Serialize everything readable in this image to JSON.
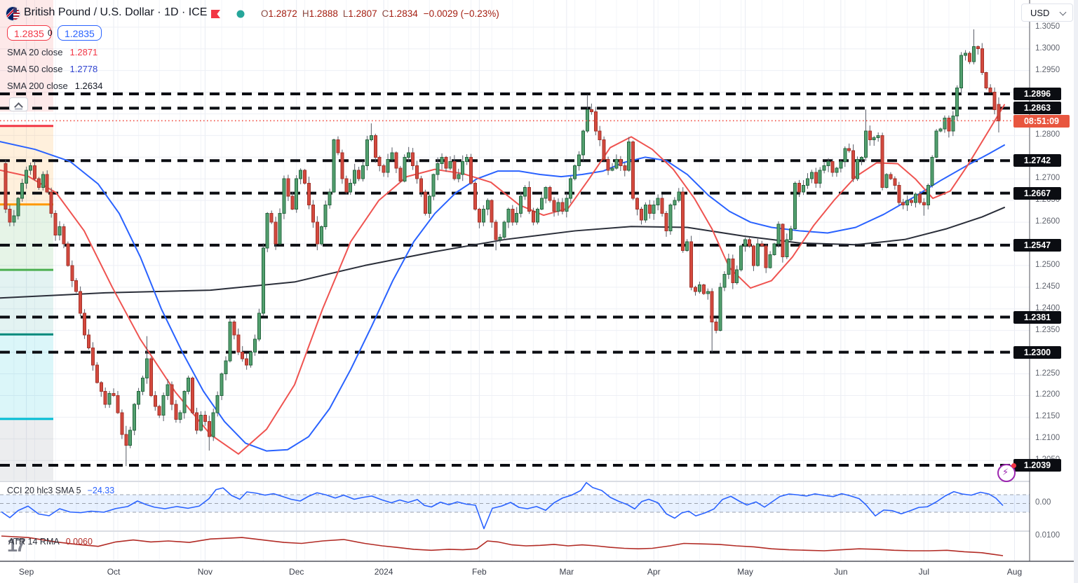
{
  "header": {
    "title": "British Pound / U.S. Dollar · 1D · ICE",
    "ohlc": {
      "o_label": "O",
      "o": "1.2872",
      "h_label": "H",
      "h": "1.2888",
      "l_label": "L",
      "l": "1.2807",
      "c_label": "C",
      "c": "1.2834",
      "change": "−0.0029 (−0.23%)"
    },
    "flag_icon": "gbp-usd-flag",
    "bookmark_color": "#f23645",
    "status_dot_color": "#26a69a"
  },
  "quote": {
    "sell": "1.2835",
    "spread": "0",
    "buy": "1.2835"
  },
  "legend": [
    {
      "name": "SMA 20 close",
      "value": "1.2871",
      "color": "#f23645"
    },
    {
      "name": "SMA 50 close",
      "value": "1.2778",
      "color": "#2f43d0"
    },
    {
      "name": "SMA 200 close",
      "value": "1.2634",
      "color": "#131722"
    }
  ],
  "price_axis": {
    "currency": "USD",
    "ticks": [
      13050,
      13000,
      12950,
      12800,
      12700,
      12650,
      12600,
      12500,
      12450,
      12400,
      12350,
      12250,
      12200,
      12150,
      12100,
      12050
    ],
    "sr_labels": [
      12896,
      12863,
      12742,
      12667,
      12547,
      12381,
      12300,
      12039
    ],
    "countdown": {
      "text": "08:51:09",
      "price": 12834
    }
  },
  "time_axis": [
    {
      "label": "Sep",
      "day": 5
    },
    {
      "label": "Oct",
      "day": 26
    },
    {
      "label": "Nov",
      "day": 48
    },
    {
      "label": "Dec",
      "day": 70
    },
    {
      "label": "2024",
      "day": 91
    },
    {
      "label": "Feb",
      "day": 114
    },
    {
      "label": "Mar",
      "day": 135
    },
    {
      "label": "Apr",
      "day": 156
    },
    {
      "label": "May",
      "day": 178
    },
    {
      "label": "Jun",
      "day": 201
    },
    {
      "label": "Jul",
      "day": 221
    },
    {
      "label": "Aug",
      "day": 242.8
    }
  ],
  "indicators": {
    "cci": {
      "label": "CCI 20 hlc3 SMA 5",
      "value": "−24.33",
      "axis_zero": "0.00",
      "line_color": "#2962ff",
      "band_bounds": [
        100,
        0,
        -100
      ]
    },
    "atr": {
      "label": "ATR 14 RMA",
      "value": "0.0060",
      "axis_tick": "0.0100",
      "line_color": "#b22b25"
    }
  },
  "misc": {
    "watermark": "17"
  },
  "chart_data": {
    "type": "candlestick",
    "title": "British Pound / U.S. Dollar, 1D, ICE",
    "ylabel": "USD",
    "ylim": [
      1.199,
      1.3113
    ],
    "current_price": 12834,
    "up_color": "#53a06f",
    "up_border": "#25663f",
    "down_color": "#d4493e",
    "down_border": "#a33229",
    "wick_color": "#565b66",
    "first_open_e4": 12735,
    "closes_e4": [
      12630,
      12600,
      12615,
      12655,
      12690,
      12720,
      12730,
      12700,
      12680,
      12710,
      12670,
      12620,
      12570,
      12590,
      12550,
      12500,
      12465,
      12440,
      12390,
      12340,
      12310,
      12270,
      12230,
      12210,
      12180,
      12205,
      12200,
      12160,
      12110,
      12085,
      12120,
      12180,
      12210,
      12240,
      12285,
      12200,
      12175,
      12155,
      12200,
      12225,
      12180,
      12145,
      12160,
      12210,
      12240,
      12160,
      12120,
      12155,
      12140,
      12105,
      12160,
      12200,
      12250,
      12280,
      12370,
      12340,
      12300,
      12285,
      12270,
      12300,
      12330,
      12390,
      12540,
      12620,
      12600,
      12550,
      12620,
      12700,
      12660,
      12630,
      12700,
      12720,
      12690,
      12640,
      12600,
      12550,
      12590,
      12640,
      12670,
      12790,
      12760,
      12700,
      12670,
      12690,
      12720,
      12700,
      12730,
      12790,
      12800,
      12750,
      12730,
      12715,
      12745,
      12760,
      12725,
      12695,
      12750,
      12760,
      12730,
      12700,
      12670,
      12620,
      12660,
      12710,
      12735,
      12750,
      12725,
      12740,
      12700,
      12710,
      12740,
      12750,
      12690,
      12630,
      12600,
      12630,
      12650,
      12600,
      12560,
      12565,
      12600,
      12630,
      12600,
      12620,
      12660,
      12680,
      12625,
      12600,
      12630,
      12655,
      12680,
      12650,
      12625,
      12645,
      12625,
      12655,
      12700,
      12730,
      12755,
      12810,
      12860,
      12855,
      12810,
      12790,
      12745,
      12720,
      12725,
      12745,
      12730,
      12720,
      12785,
      12655,
      12630,
      12605,
      12640,
      12620,
      12640,
      12655,
      12620,
      12580,
      12640,
      12650,
      12670,
      12535,
      12555,
      12450,
      12440,
      12455,
      12435,
      12440,
      12370,
      12350,
      12450,
      12480,
      12515,
      12460,
      12490,
      12545,
      12560,
      12545,
      12500,
      12550,
      12545,
      12495,
      12525,
      12550,
      12595,
      12520,
      12560,
      12585,
      12690,
      12670,
      12685,
      12700,
      12715,
      12690,
      12720,
      12730,
      12740,
      12715,
      12725,
      12740,
      12770,
      12765,
      12700,
      12745,
      12750,
      12810,
      12790,
      12795,
      12800,
      12680,
      12710,
      12700,
      12685,
      12645,
      12640,
      12650,
      12645,
      12665,
      12645,
      12640,
      12685,
      12750,
      12810,
      12815,
      12840,
      12810,
      12845,
      12910,
      12985,
      12990,
      12970,
      13005,
      13000,
      12945,
      12910,
      12900,
      12860,
      12834
    ],
    "wick_overrides": {
      "29": [
        12130,
        12037
      ],
      "34": [
        12337,
        null
      ],
      "49": [
        null,
        12073
      ],
      "88": [
        12828,
        null
      ],
      "118": [
        null,
        12535
      ],
      "140": [
        12894,
        null
      ],
      "170": [
        null,
        12300
      ],
      "207": [
        12860,
        null
      ],
      "221": [
        null,
        12615
      ],
      "233": [
        13045,
        null
      ],
      "239": [
        12888,
        12807
      ]
    },
    "open_overrides": {
      "239": 12872
    },
    "sr_levels_e4": [
      12896,
      12863,
      12742,
      12667,
      12547,
      12381,
      12300,
      12039
    ],
    "sma20": [
      [
        0,
        12720
      ],
      [
        40,
        12706
      ],
      [
        80,
        12668
      ],
      [
        120,
        12580
      ],
      [
        160,
        12450
      ],
      [
        200,
        12330
      ],
      [
        250,
        12208
      ],
      [
        300,
        12110
      ],
      [
        340,
        12065
      ],
      [
        380,
        12122
      ],
      [
        420,
        12225
      ],
      [
        460,
        12400
      ],
      [
        500,
        12555
      ],
      [
        540,
        12650
      ],
      [
        580,
        12705
      ],
      [
        620,
        12722
      ],
      [
        660,
        12712
      ],
      [
        700,
        12692
      ],
      [
        740,
        12640
      ],
      [
        775,
        12616
      ],
      [
        810,
        12632
      ],
      [
        840,
        12700
      ],
      [
        870,
        12772
      ],
      [
        900,
        12797
      ],
      [
        930,
        12768
      ],
      [
        960,
        12722
      ],
      [
        990,
        12655
      ],
      [
        1015,
        12585
      ],
      [
        1040,
        12495
      ],
      [
        1070,
        12448
      ],
      [
        1100,
        12465
      ],
      [
        1130,
        12520
      ],
      [
        1160,
        12592
      ],
      [
        1190,
        12652
      ],
      [
        1220,
        12705
      ],
      [
        1250,
        12737
      ],
      [
        1280,
        12735
      ],
      [
        1305,
        12700
      ],
      [
        1330,
        12655
      ],
      [
        1355,
        12672
      ],
      [
        1380,
        12732
      ],
      [
        1410,
        12812
      ],
      [
        1432,
        12871
      ]
    ],
    "sma50": [
      [
        0,
        12786
      ],
      [
        50,
        12768
      ],
      [
        100,
        12740
      ],
      [
        140,
        12688
      ],
      [
        170,
        12620
      ],
      [
        200,
        12520
      ],
      [
        230,
        12400
      ],
      [
        260,
        12300
      ],
      [
        290,
        12210
      ],
      [
        320,
        12140
      ],
      [
        350,
        12090
      ],
      [
        380,
        12072
      ],
      [
        410,
        12075
      ],
      [
        440,
        12105
      ],
      [
        470,
        12170
      ],
      [
        500,
        12260
      ],
      [
        530,
        12360
      ],
      [
        560,
        12465
      ],
      [
        590,
        12555
      ],
      [
        620,
        12620
      ],
      [
        650,
        12668
      ],
      [
        680,
        12700
      ],
      [
        710,
        12718
      ],
      [
        740,
        12718
      ],
      [
        770,
        12710
      ],
      [
        800,
        12705
      ],
      [
        830,
        12710
      ],
      [
        860,
        12718
      ],
      [
        890,
        12738
      ],
      [
        920,
        12750
      ],
      [
        950,
        12742
      ],
      [
        980,
        12710
      ],
      [
        1010,
        12662
      ],
      [
        1040,
        12625
      ],
      [
        1070,
        12600
      ],
      [
        1100,
        12588
      ],
      [
        1140,
        12580
      ],
      [
        1180,
        12575
      ],
      [
        1220,
        12588
      ],
      [
        1260,
        12618
      ],
      [
        1300,
        12655
      ],
      [
        1340,
        12695
      ],
      [
        1380,
        12732
      ],
      [
        1410,
        12758
      ],
      [
        1432,
        12778
      ]
    ],
    "sma200": [
      [
        0,
        12425
      ],
      [
        150,
        12437
      ],
      [
        300,
        12443
      ],
      [
        420,
        12462
      ],
      [
        520,
        12500
      ],
      [
        620,
        12532
      ],
      [
        720,
        12560
      ],
      [
        820,
        12580
      ],
      [
        900,
        12590
      ],
      [
        980,
        12588
      ],
      [
        1060,
        12568
      ],
      [
        1140,
        12552
      ],
      [
        1220,
        12548
      ],
      [
        1290,
        12560
      ],
      [
        1350,
        12585
      ],
      [
        1400,
        12612
      ],
      [
        1432,
        12634
      ]
    ],
    "pivot_zones": {
      "x_span": [
        0,
        76
      ],
      "bands": [
        {
          "top_e4": 13113,
          "bottom_e4": 12855,
          "color": "rgba(242,82,82,0.13)"
        },
        {
          "top_e4": 12820,
          "bottom_e4": 12641,
          "color": "rgba(255,160,40,0.16)"
        },
        {
          "top_e4": 12641,
          "bottom_e4": 12490,
          "color": "rgba(102,187,106,0.16)"
        },
        {
          "top_e4": 12490,
          "bottom_e4": 12341,
          "color": "rgba(38,166,154,0.13)"
        },
        {
          "top_e4": 12341,
          "bottom_e4": 12146,
          "color": "rgba(0,188,212,0.14)"
        },
        {
          "top_e4": 12146,
          "bottom_e4": 12004,
          "color": "rgba(130,134,148,0.15)"
        }
      ],
      "lines": [
        {
          "price_e4": 12822,
          "color": "#f23645"
        },
        {
          "price_e4": 12641,
          "color": "#ff9800"
        },
        {
          "price_e4": 12490,
          "color": "#4caf50"
        },
        {
          "price_e4": 12341,
          "color": "#00897b"
        },
        {
          "price_e4": 12146,
          "color": "#00bcd4"
        }
      ]
    },
    "cci_points": [
      [
        2,
        -95
      ],
      [
        14,
        -162
      ],
      [
        26,
        -80
      ],
      [
        40,
        -30
      ],
      [
        55,
        -120
      ],
      [
        70,
        -140
      ],
      [
        85,
        -60
      ],
      [
        100,
        -98
      ],
      [
        115,
        -105
      ],
      [
        130,
        -88
      ],
      [
        148,
        -100
      ],
      [
        165,
        -58
      ],
      [
        182,
        -35
      ],
      [
        196,
        28
      ],
      [
        208,
        -12
      ],
      [
        220,
        -42
      ],
      [
        235,
        -60
      ],
      [
        252,
        -35
      ],
      [
        268,
        -55
      ],
      [
        284,
        -30
      ],
      [
        298,
        55
      ],
      [
        308,
        158
      ],
      [
        318,
        178
      ],
      [
        330,
        92
      ],
      [
        342,
        48
      ],
      [
        352,
        132
      ],
      [
        365,
        118
      ],
      [
        378,
        95
      ],
      [
        390,
        112
      ],
      [
        402,
        82
      ],
      [
        415,
        48
      ],
      [
        428,
        28
      ],
      [
        440,
        82
      ],
      [
        452,
        122
      ],
      [
        465,
        98
      ],
      [
        478,
        62
      ],
      [
        490,
        95
      ],
      [
        505,
        48
      ],
      [
        518,
        70
      ],
      [
        530,
        85
      ],
      [
        545,
        40
      ],
      [
        558,
        8
      ],
      [
        570,
        40
      ],
      [
        582,
        12
      ],
      [
        595,
        45
      ],
      [
        605,
        -22
      ],
      [
        615,
        -40
      ],
      [
        628,
        15
      ],
      [
        640,
        -15
      ],
      [
        652,
        18
      ],
      [
        665,
        -8
      ],
      [
        678,
        -20
      ],
      [
        690,
        -288
      ],
      [
        702,
        -55
      ],
      [
        715,
        -30
      ],
      [
        728,
        12
      ],
      [
        740,
        -45
      ],
      [
        752,
        -60
      ],
      [
        765,
        -35
      ],
      [
        778,
        -78
      ],
      [
        790,
        8
      ],
      [
        802,
        62
      ],
      [
        815,
        95
      ],
      [
        828,
        148
      ],
      [
        836,
        238
      ],
      [
        845,
        182
      ],
      [
        858,
        148
      ],
      [
        870,
        70
      ],
      [
        882,
        25
      ],
      [
        895,
        -15
      ],
      [
        905,
        -62
      ],
      [
        915,
        22
      ],
      [
        925,
        48
      ],
      [
        938,
        8
      ],
      [
        950,
        -118
      ],
      [
        962,
        -168
      ],
      [
        972,
        -108
      ],
      [
        982,
        -88
      ],
      [
        992,
        -142
      ],
      [
        1005,
        -108
      ],
      [
        1018,
        -62
      ],
      [
        1030,
        45
      ],
      [
        1042,
        82
      ],
      [
        1055,
        22
      ],
      [
        1065,
        -18
      ],
      [
        1078,
        18
      ],
      [
        1090,
        -42
      ],
      [
        1102,
        25
      ],
      [
        1112,
        80
      ],
      [
        1125,
        108
      ],
      [
        1138,
        98
      ],
      [
        1150,
        85
      ],
      [
        1162,
        110
      ],
      [
        1175,
        92
      ],
      [
        1188,
        78
      ],
      [
        1200,
        112
      ],
      [
        1212,
        88
      ],
      [
        1225,
        55
      ],
      [
        1235,
        -18
      ],
      [
        1248,
        -142
      ],
      [
        1260,
        -75
      ],
      [
        1272,
        -82
      ],
      [
        1285,
        -118
      ],
      [
        1298,
        -82
      ],
      [
        1310,
        -45
      ],
      [
        1322,
        -38
      ],
      [
        1335,
        18
      ],
      [
        1348,
        88
      ],
      [
        1360,
        135
      ],
      [
        1372,
        108
      ],
      [
        1385,
        95
      ],
      [
        1398,
        128
      ],
      [
        1410,
        108
      ],
      [
        1420,
        60
      ],
      [
        1430,
        -24
      ]
    ],
    "atr_points": [
      [
        2,
        100
      ],
      [
        40,
        97
      ],
      [
        80,
        88
      ],
      [
        110,
        83
      ],
      [
        140,
        79
      ],
      [
        165,
        88
      ],
      [
        190,
        92
      ],
      [
        215,
        88
      ],
      [
        240,
        90
      ],
      [
        270,
        87
      ],
      [
        300,
        94
      ],
      [
        330,
        96
      ],
      [
        345,
        97
      ],
      [
        375,
        92
      ],
      [
        405,
        87
      ],
      [
        430,
        85
      ],
      [
        460,
        90
      ],
      [
        490,
        93
      ],
      [
        520,
        85
      ],
      [
        545,
        80
      ],
      [
        565,
        77
      ],
      [
        590,
        73
      ],
      [
        615,
        71
      ],
      [
        640,
        73
      ],
      [
        660,
        72
      ],
      [
        680,
        74
      ],
      [
        695,
        90
      ],
      [
        710,
        88
      ],
      [
        730,
        82
      ],
      [
        750,
        80
      ],
      [
        770,
        81
      ],
      [
        790,
        83
      ],
      [
        810,
        80
      ],
      [
        830,
        82
      ],
      [
        850,
        80
      ],
      [
        870,
        77
      ],
      [
        890,
        75
      ],
      [
        910,
        74
      ],
      [
        930,
        75
      ],
      [
        955,
        80
      ],
      [
        975,
        85
      ],
      [
        1000,
        84
      ],
      [
        1025,
        83
      ],
      [
        1050,
        80
      ],
      [
        1075,
        78
      ],
      [
        1100,
        74
      ],
      [
        1125,
        72
      ],
      [
        1150,
        71
      ],
      [
        1175,
        70
      ],
      [
        1200,
        72
      ],
      [
        1225,
        74
      ],
      [
        1250,
        73
      ],
      [
        1275,
        71
      ],
      [
        1300,
        70
      ],
      [
        1325,
        70
      ],
      [
        1350,
        71
      ],
      [
        1375,
        68
      ],
      [
        1400,
        66
      ],
      [
        1415,
        63
      ],
      [
        1430,
        60
      ]
    ]
  }
}
